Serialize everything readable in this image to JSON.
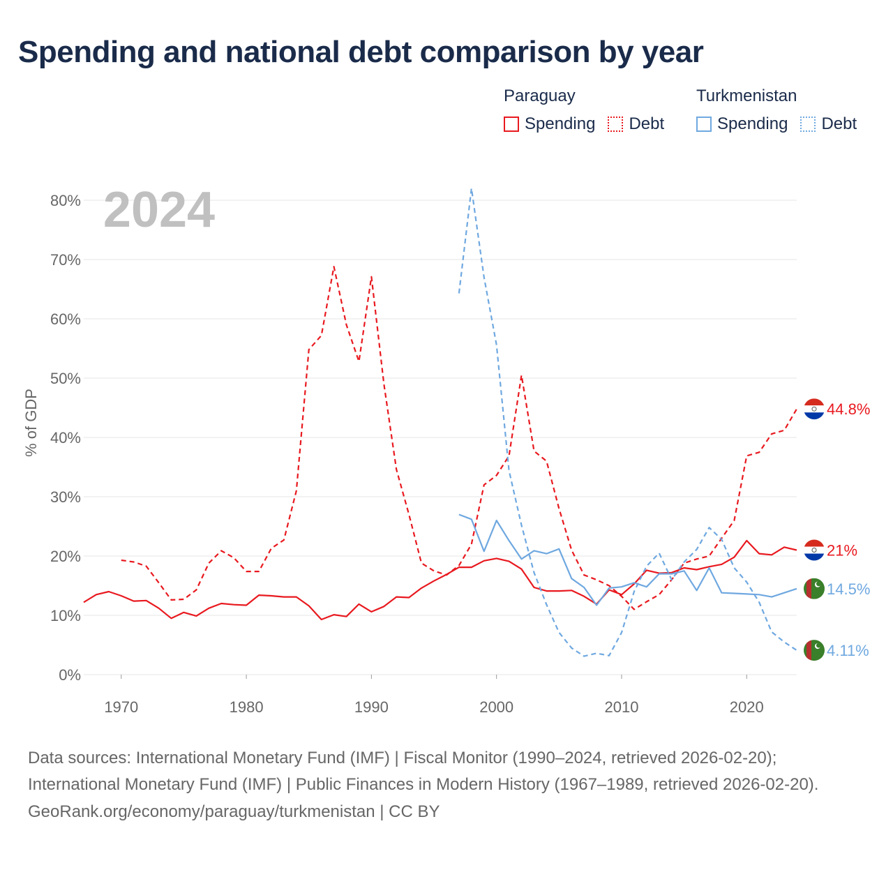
{
  "title": "Spending and national debt comparison by year",
  "year_label": "2024",
  "legend": {
    "paraguay": {
      "name": "Paraguay",
      "spending": "Spending",
      "debt": "Debt"
    },
    "turkmenistan": {
      "name": "Turkmenistan",
      "spending": "Spending",
      "debt": "Debt"
    }
  },
  "colors": {
    "paraguay": "#e8191f",
    "turkmenistan": "#6fa8e0",
    "grid": "#e6e6e6",
    "axis_text": "#666666",
    "year": "#c0c0c0"
  },
  "footer": {
    "sources": "Data sources: International Monetary Fund (IMF) | Fiscal Monitor (1990–2024, retrieved 2026-02-20); International Monetary Fund (IMF) | Public Finances in Modern History (1967–1989, retrieved 2026-02-20).",
    "credit": "GeoRank.org/economy/paraguay/turkmenistan | CC BY"
  },
  "chart_data": {
    "type": "line",
    "title": "Spending and national debt comparison by year",
    "xlabel": "",
    "ylabel": "% of GDP",
    "xlim": [
      1967,
      2024
    ],
    "ylim": [
      0,
      80
    ],
    "x_ticks": [
      1970,
      1980,
      1990,
      2000,
      2010,
      2020
    ],
    "y_ticks": [
      0,
      10,
      20,
      30,
      40,
      50,
      60,
      70,
      80
    ],
    "y_tick_labels": [
      "0%",
      "10%",
      "20%",
      "30%",
      "40%",
      "50%",
      "60%",
      "70%",
      "80%"
    ],
    "series": [
      {
        "name": "Paraguay Spending",
        "country": "paraguay",
        "style": "solid",
        "end_label": "21%",
        "x": [
          1967,
          1968,
          1969,
          1970,
          1971,
          1972,
          1973,
          1974,
          1975,
          1976,
          1977,
          1978,
          1979,
          1980,
          1981,
          1982,
          1983,
          1984,
          1985,
          1986,
          1987,
          1988,
          1989,
          1990,
          1991,
          1992,
          1993,
          1994,
          1995,
          1996,
          1997,
          1998,
          1999,
          2000,
          2001,
          2002,
          2003,
          2004,
          2005,
          2006,
          2007,
          2008,
          2009,
          2010,
          2011,
          2012,
          2013,
          2014,
          2015,
          2016,
          2017,
          2018,
          2019,
          2020,
          2021,
          2022,
          2023,
          2024
        ],
        "values": [
          12.2,
          13.5,
          14.0,
          13.3,
          12.4,
          12.5,
          11.2,
          9.5,
          10.5,
          9.9,
          11.2,
          12.0,
          11.8,
          11.7,
          13.4,
          13.3,
          13.1,
          13.1,
          11.6,
          9.3,
          10.1,
          9.8,
          11.9,
          10.6,
          11.5,
          13.1,
          13.0,
          14.6,
          15.8,
          16.9,
          18.1,
          18.1,
          19.2,
          19.6,
          19.1,
          17.8,
          14.7,
          14.1,
          14.1,
          14.2,
          13.2,
          11.9,
          14.3,
          13.5,
          15.3,
          17.6,
          17.1,
          17.2,
          18.0,
          17.7,
          18.2,
          18.6,
          19.8,
          22.6,
          20.4,
          20.2,
          21.5,
          21.0
        ]
      },
      {
        "name": "Paraguay Debt",
        "country": "paraguay",
        "style": "dashed",
        "end_label": "44.8%",
        "x": [
          1970,
          1971,
          1972,
          1973,
          1974,
          1975,
          1976,
          1977,
          1978,
          1979,
          1980,
          1981,
          1982,
          1983,
          1984,
          1985,
          1986,
          1987,
          1988,
          1989,
          1990,
          1991,
          1992,
          1993,
          1994,
          1995,
          1996,
          1997,
          1998,
          1999,
          2000,
          2001,
          2002,
          2003,
          2004,
          2005,
          2006,
          2007,
          2008,
          2009,
          2010,
          2011,
          2012,
          2013,
          2014,
          2015,
          2016,
          2017,
          2018,
          2019,
          2020,
          2021,
          2022,
          2023,
          2024
        ],
        "values": [
          19.3,
          19.0,
          18.3,
          15.5,
          12.6,
          12.7,
          14.3,
          18.8,
          20.9,
          19.7,
          17.4,
          17.4,
          21.3,
          22.7,
          31.0,
          54.8,
          57.2,
          68.8,
          59.0,
          52.8,
          67.1,
          49.0,
          34.6,
          27.0,
          18.8,
          17.5,
          16.8,
          18.4,
          22.0,
          32.0,
          33.6,
          36.9,
          50.5,
          37.7,
          36.0,
          28.0,
          21.0,
          16.8,
          16.0,
          15.0,
          13.2,
          11.0,
          12.3,
          13.5,
          16.0,
          18.8,
          19.5,
          20.0,
          23.0,
          26.0,
          36.9,
          37.5,
          40.6,
          41.2,
          44.8
        ]
      },
      {
        "name": "Turkmenistan Spending",
        "country": "turkmenistan",
        "style": "solid",
        "end_label": "14.5%",
        "x": [
          1997,
          1998,
          1999,
          2000,
          2001,
          2002,
          2003,
          2004,
          2005,
          2006,
          2007,
          2008,
          2009,
          2010,
          2011,
          2012,
          2013,
          2014,
          2015,
          2016,
          2017,
          2018,
          2019,
          2020,
          2021,
          2022,
          2023,
          2024
        ],
        "values": [
          27.0,
          26.2,
          20.8,
          26.0,
          22.6,
          19.5,
          20.9,
          20.4,
          21.2,
          16.2,
          14.7,
          11.7,
          14.6,
          14.8,
          15.5,
          14.8,
          17.0,
          17.0,
          17.5,
          14.2,
          18.0,
          13.8,
          13.7,
          13.6,
          13.5,
          13.1,
          13.8,
          14.5
        ]
      },
      {
        "name": "Turkmenistan Debt",
        "country": "turkmenistan",
        "style": "dashed",
        "end_label": "4.11%",
        "x": [
          1997,
          1998,
          1999,
          2000,
          2001,
          2002,
          2003,
          2004,
          2005,
          2006,
          2007,
          2008,
          2009,
          2010,
          2011,
          2012,
          2013,
          2014,
          2015,
          2016,
          2017,
          2018,
          2019,
          2020,
          2021,
          2022,
          2023,
          2024
        ],
        "values": [
          64.3,
          82.0,
          67.0,
          55.6,
          34.4,
          25.2,
          17.2,
          11.8,
          7.1,
          4.5,
          3.1,
          3.6,
          3.2,
          7.1,
          14.0,
          18.3,
          20.5,
          16.0,
          19.0,
          21.1,
          24.8,
          22.8,
          18.0,
          15.6,
          12.2,
          7.2,
          5.5,
          4.11
        ]
      }
    ]
  }
}
